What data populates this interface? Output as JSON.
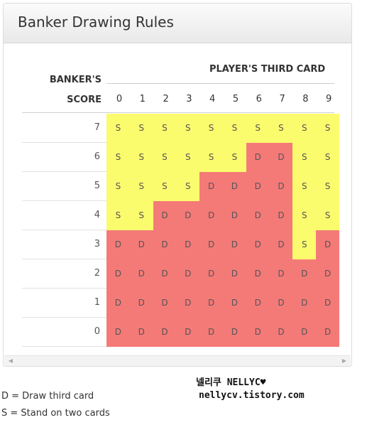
{
  "panel": {
    "title": "Banker Drawing Rules",
    "banker_label": "BANKER'S",
    "score_label": "SCORE",
    "player_label": "PLAYER'S THIRD CARD",
    "columns": [
      "0",
      "1",
      "2",
      "3",
      "4",
      "5",
      "6",
      "7",
      "8",
      "9"
    ],
    "rows": [
      {
        "score": "7",
        "cells": [
          "S",
          "S",
          "S",
          "S",
          "S",
          "S",
          "S",
          "S",
          "S",
          "S"
        ]
      },
      {
        "score": "6",
        "cells": [
          "S",
          "S",
          "S",
          "S",
          "S",
          "S",
          "D",
          "D",
          "S",
          "S"
        ]
      },
      {
        "score": "5",
        "cells": [
          "S",
          "S",
          "S",
          "S",
          "D",
          "D",
          "D",
          "D",
          "S",
          "S"
        ]
      },
      {
        "score": "4",
        "cells": [
          "S",
          "S",
          "D",
          "D",
          "D",
          "D",
          "D",
          "D",
          "S",
          "S"
        ]
      },
      {
        "score": "3",
        "cells": [
          "D",
          "D",
          "D",
          "D",
          "D",
          "D",
          "D",
          "D",
          "S",
          "D"
        ]
      },
      {
        "score": "2",
        "cells": [
          "D",
          "D",
          "D",
          "D",
          "D",
          "D",
          "D",
          "D",
          "D",
          "D"
        ]
      },
      {
        "score": "1",
        "cells": [
          "D",
          "D",
          "D",
          "D",
          "D",
          "D",
          "D",
          "D",
          "D",
          "D"
        ]
      },
      {
        "score": "0",
        "cells": [
          "D",
          "D",
          "D",
          "D",
          "D",
          "D",
          "D",
          "D",
          "D",
          "D"
        ]
      }
    ],
    "colors": {
      "stand": "#fbfb6e",
      "draw": "#f47a78"
    }
  },
  "scrollbar": {
    "left_icon": "arrow-left-icon",
    "right_icon": "arrow-right-icon"
  },
  "legend": {
    "draw": "D = Draw third card",
    "stand": "S = Stand on two cards"
  },
  "watermark": {
    "line1": "넬리쿠 NELLYC♥",
    "line2": "nellycv.tistory.com"
  }
}
